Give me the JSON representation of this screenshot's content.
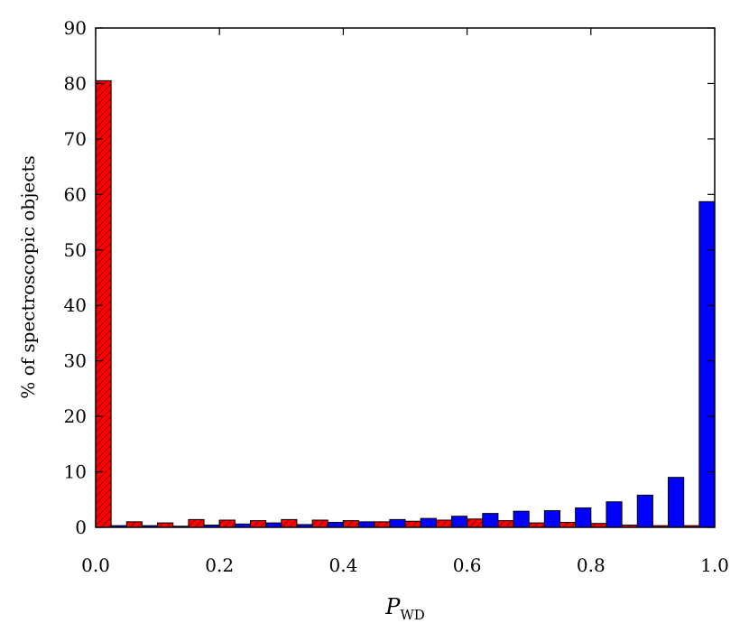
{
  "chart_data": {
    "type": "histogram",
    "y_label": "% of spectroscopic objects",
    "x_label": "P",
    "x_label_subscript": "WD",
    "bins": [
      0,
      0.05,
      0.1,
      0.15,
      0.2,
      0.25,
      0.3,
      0.35,
      0.4,
      0.45,
      0.5,
      0.55,
      0.6,
      0.65,
      0.7,
      0.75,
      0.8,
      0.85,
      0.9,
      0.95,
      1.0
    ],
    "series": [
      {
        "color": "#ff0000",
        "hatch": true,
        "values": [
          80.5,
          1.0,
          0.8,
          1.4,
          1.3,
          1.2,
          1.4,
          1.3,
          1.2,
          1.0,
          1.1,
          1.3,
          1.5,
          1.2,
          0.8,
          0.9,
          0.7,
          0.4,
          0.3,
          0.3
        ]
      },
      {
        "color": "#0000ff",
        "hatch": false,
        "values": [
          0.3,
          0.3,
          0.2,
          0.4,
          0.6,
          0.8,
          0.5,
          0.9,
          1.0,
          1.4,
          1.6,
          2.0,
          2.5,
          2.9,
          3.0,
          3.5,
          4.6,
          5.8,
          9.0,
          58.7
        ]
      }
    ],
    "xlim": [
      0,
      1.0
    ],
    "ylim": [
      0,
      90
    ],
    "xticks": [
      {
        "value": 0,
        "label": "0.0"
      },
      0.2,
      0.4,
      0.6,
      0.8,
      {
        "value": 1.0,
        "label": "1.0"
      }
    ],
    "yticks": [
      0,
      10,
      20,
      30,
      40,
      50,
      60,
      70,
      80,
      90
    ]
  }
}
